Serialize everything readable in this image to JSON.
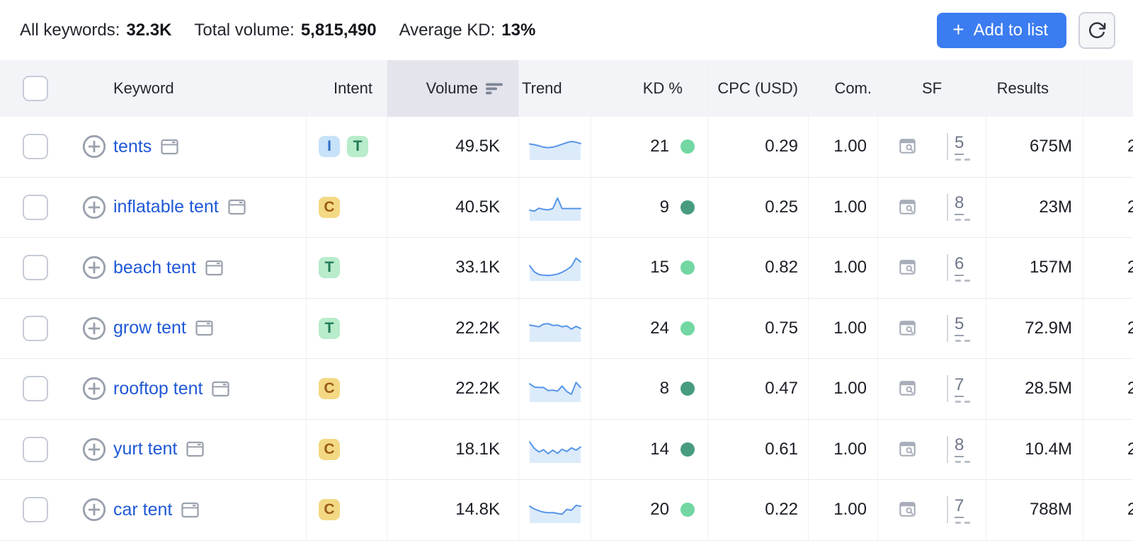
{
  "summary": {
    "all_keywords_label": "All keywords:",
    "all_keywords_value": "32.3K",
    "total_volume_label": "Total volume:",
    "total_volume_value": "5,815,490",
    "average_kd_label": "Average KD:",
    "average_kd_value": "13%"
  },
  "toolbar": {
    "plus_icon": "+",
    "add_to_list_label": "Add to list",
    "refresh_icon": "refresh-icon"
  },
  "table": {
    "headers": {
      "keyword": "Keyword",
      "intent": "Intent",
      "volume": "Volume",
      "trend": "Trend",
      "kd": "KD %",
      "cpc": "CPC (USD)",
      "com": "Com.",
      "sf": "SF",
      "results": "Results"
    },
    "sorted_column": "volume",
    "sort_direction": "descending",
    "rows": [
      {
        "keyword": "tents",
        "intents": [
          {
            "label": "I",
            "type": "informational"
          },
          {
            "label": "T",
            "type": "transactional"
          }
        ],
        "volume": "49.5K",
        "trend": [
          58,
          55,
          50,
          44,
          42,
          44,
          50,
          57,
          64,
          69,
          66,
          60
        ],
        "kd": "21",
        "kd_level": "easy",
        "cpc": "0.29",
        "com": "1.00",
        "sf_count": "5",
        "results": "675M",
        "clipped_next_value": "2"
      },
      {
        "keyword": "inflatable tent",
        "intents": [
          {
            "label": "C",
            "type": "commercial"
          }
        ],
        "volume": "40.5K",
        "trend": [
          35,
          30,
          43,
          38,
          36,
          42,
          88,
          42,
          42,
          42,
          42,
          42
        ],
        "kd": "9",
        "kd_level": "very-easy",
        "cpc": "0.25",
        "com": "1.00",
        "sf_count": "8",
        "results": "23M",
        "clipped_next_value": "2"
      },
      {
        "keyword": "beach tent",
        "intents": [
          {
            "label": "T",
            "type": "transactional"
          }
        ],
        "volume": "33.1K",
        "trend": [
          55,
          28,
          16,
          13,
          12,
          14,
          18,
          26,
          38,
          52,
          88,
          72
        ],
        "kd": "15",
        "kd_level": "easy",
        "cpc": "0.82",
        "com": "1.00",
        "sf_count": "6",
        "results": "157M",
        "clipped_next_value": "2"
      },
      {
        "keyword": "grow tent",
        "intents": [
          {
            "label": "T",
            "type": "transactional"
          }
        ],
        "volume": "22.2K",
        "trend": [
          62,
          58,
          54,
          66,
          68,
          60,
          62,
          54,
          58,
          44,
          56,
          47
        ],
        "kd": "24",
        "kd_level": "easy",
        "cpc": "0.75",
        "com": "1.00",
        "sf_count": "5",
        "results": "72.9M",
        "clipped_next_value": "2"
      },
      {
        "keyword": "rooftop tent",
        "intents": [
          {
            "label": "C",
            "type": "commercial"
          }
        ],
        "volume": "22.2K",
        "trend": [
          68,
          54,
          52,
          52,
          38,
          40,
          36,
          58,
          34,
          22,
          74,
          52
        ],
        "kd": "8",
        "kd_level": "very-easy",
        "cpc": "0.47",
        "com": "1.00",
        "sf_count": "7",
        "results": "28.5M",
        "clipped_next_value": "2"
      },
      {
        "keyword": "yurt tent",
        "intents": [
          {
            "label": "C",
            "type": "commercial"
          }
        ],
        "volume": "18.1K",
        "trend": [
          80,
          52,
          36,
          46,
          28,
          44,
          30,
          48,
          38,
          54,
          44,
          58
        ],
        "kd": "14",
        "kd_level": "very-easy",
        "cpc": "0.61",
        "com": "1.00",
        "sf_count": "8",
        "results": "10.4M",
        "clipped_next_value": "2"
      },
      {
        "keyword": "car tent",
        "intents": [
          {
            "label": "C",
            "type": "commercial"
          }
        ],
        "volume": "14.8K",
        "trend": [
          62,
          50,
          42,
          36,
          33,
          34,
          30,
          27,
          48,
          44,
          66,
          62
        ],
        "kd": "20",
        "kd_level": "easy",
        "cpc": "0.22",
        "com": "1.00",
        "sf_count": "7",
        "results": "788M",
        "clipped_next_value": "2"
      }
    ]
  },
  "colors": {
    "accent_blue": "#3b7cf1",
    "link_blue": "#1f58d6",
    "kd_easy_dot": "#72d7a2",
    "kd_very_easy_dot": "#479c80",
    "intent_informational_bg": "#c7e2f9",
    "intent_informational_text": "#2d6bc9",
    "intent_transactional_bg": "#b8eccb",
    "intent_transactional_text": "#217a58",
    "intent_commercial_bg": "#f3d984",
    "intent_commercial_text": "#9c5c1a",
    "trend_line": "#5795e7",
    "trend_fill": "#dcebfa"
  }
}
